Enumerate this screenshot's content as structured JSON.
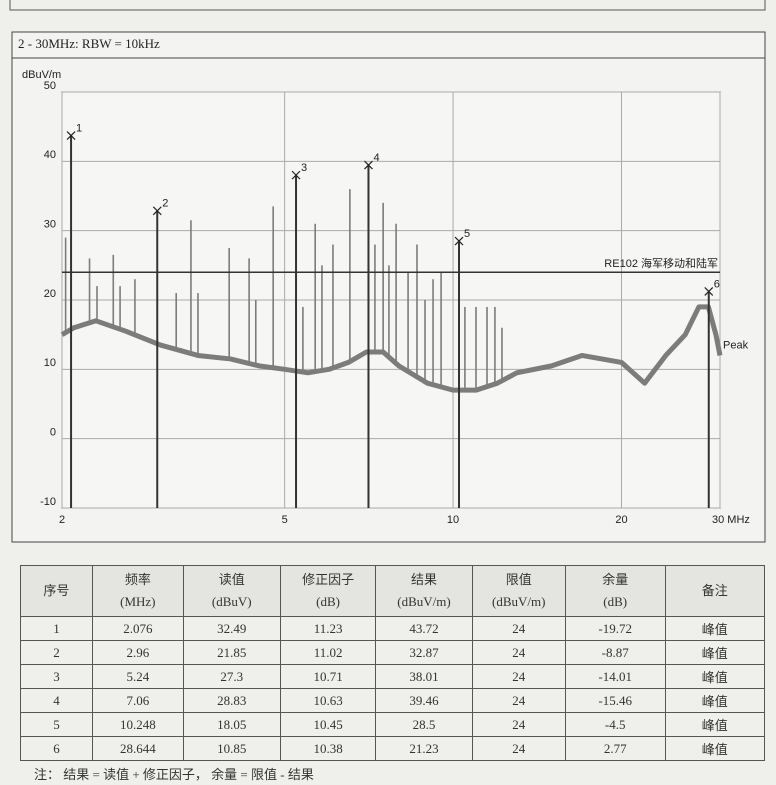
{
  "chart_data": {
    "type": "line",
    "title": "2 - 30MHz: RBW = 10kHz",
    "y_label": "dBuV/m",
    "xscale": "log",
    "xlim": [
      2,
      30
    ],
    "xticks": [
      2,
      5,
      10,
      20,
      {
        "value": 30,
        "label": "30 MHz"
      }
    ],
    "ylim": [
      -10,
      50
    ],
    "yticks": [
      -10,
      0,
      10,
      20,
      30,
      40,
      50
    ],
    "grid": true,
    "series": [
      {
        "name": "Peak",
        "color": "#7c7c7c",
        "x": [
          2,
          2.1,
          2.3,
          2.6,
          3,
          3.5,
          4,
          4.5,
          5,
          5.5,
          6,
          6.5,
          7,
          7.5,
          8,
          9,
          10,
          11,
          12,
          13,
          15,
          17,
          20,
          22,
          24,
          26,
          27.5,
          28.6,
          29.5,
          30
        ],
        "values": [
          15,
          16,
          17,
          15.5,
          13.5,
          12,
          11.5,
          10.5,
          10,
          9.5,
          10,
          11,
          12.5,
          12.5,
          10.5,
          8,
          7,
          7,
          8,
          9.5,
          10.5,
          12,
          11,
          8,
          12,
          15,
          19,
          19,
          15,
          12
        ]
      }
    ],
    "spikes": {
      "color": "#7c7c7c",
      "x": [
        2.03,
        2.24,
        2.31,
        2.47,
        2.54,
        2.7,
        3.2,
        3.4,
        3.5,
        3.98,
        4.32,
        4.44,
        4.77,
        5.39,
        5.67,
        5.83,
        6.1,
        6.54,
        7.25,
        7.5,
        7.68,
        7.91,
        8.31,
        8.62,
        8.91,
        9.21,
        9.52,
        10.5,
        10.99,
        11.5,
        11.88,
        12.23
      ],
      "values": [
        29,
        26,
        22,
        26.5,
        22,
        23,
        21,
        31.5,
        21,
        27.5,
        26,
        20,
        33.5,
        19,
        31,
        25,
        28,
        36,
        28,
        34,
        25,
        31,
        24,
        28,
        20,
        23,
        24,
        19,
        19,
        19,
        19,
        16
      ]
    },
    "limit": {
      "label": "RE102 海军移动和陆军",
      "value": 24,
      "color": "#333333"
    }
  },
  "table": {
    "headers": [
      [
        "序号"
      ],
      [
        "频率",
        "(MHz)"
      ],
      [
        "读值",
        "(dBuV)"
      ],
      [
        "修正因子",
        "(dB)"
      ],
      [
        "结果",
        "(dBuV/m)"
      ],
      [
        "限值",
        "(dBuV/m)"
      ],
      [
        "余量",
        "(dB)"
      ],
      [
        "备注"
      ]
    ],
    "rows": [
      [
        1,
        2.076,
        32.49,
        11.23,
        43.72,
        24,
        -19.72,
        "峰值"
      ],
      [
        2,
        2.96,
        21.85,
        11.02,
        32.87,
        24,
        -8.87,
        "峰值"
      ],
      [
        3,
        5.24,
        27.3,
        10.71,
        38.01,
        24,
        -14.01,
        "峰值"
      ],
      [
        4,
        7.06,
        28.83,
        10.63,
        39.46,
        24,
        -15.46,
        "峰值"
      ],
      [
        5,
        10.248,
        18.05,
        10.45,
        28.5,
        24,
        -4.5,
        "峰值"
      ],
      [
        6,
        28.644,
        10.85,
        10.38,
        21.23,
        24,
        2.77,
        "峰值"
      ]
    ]
  },
  "note": "注： 结果 = 读值 + 修正因子， 余量 = 限值 - 结果"
}
